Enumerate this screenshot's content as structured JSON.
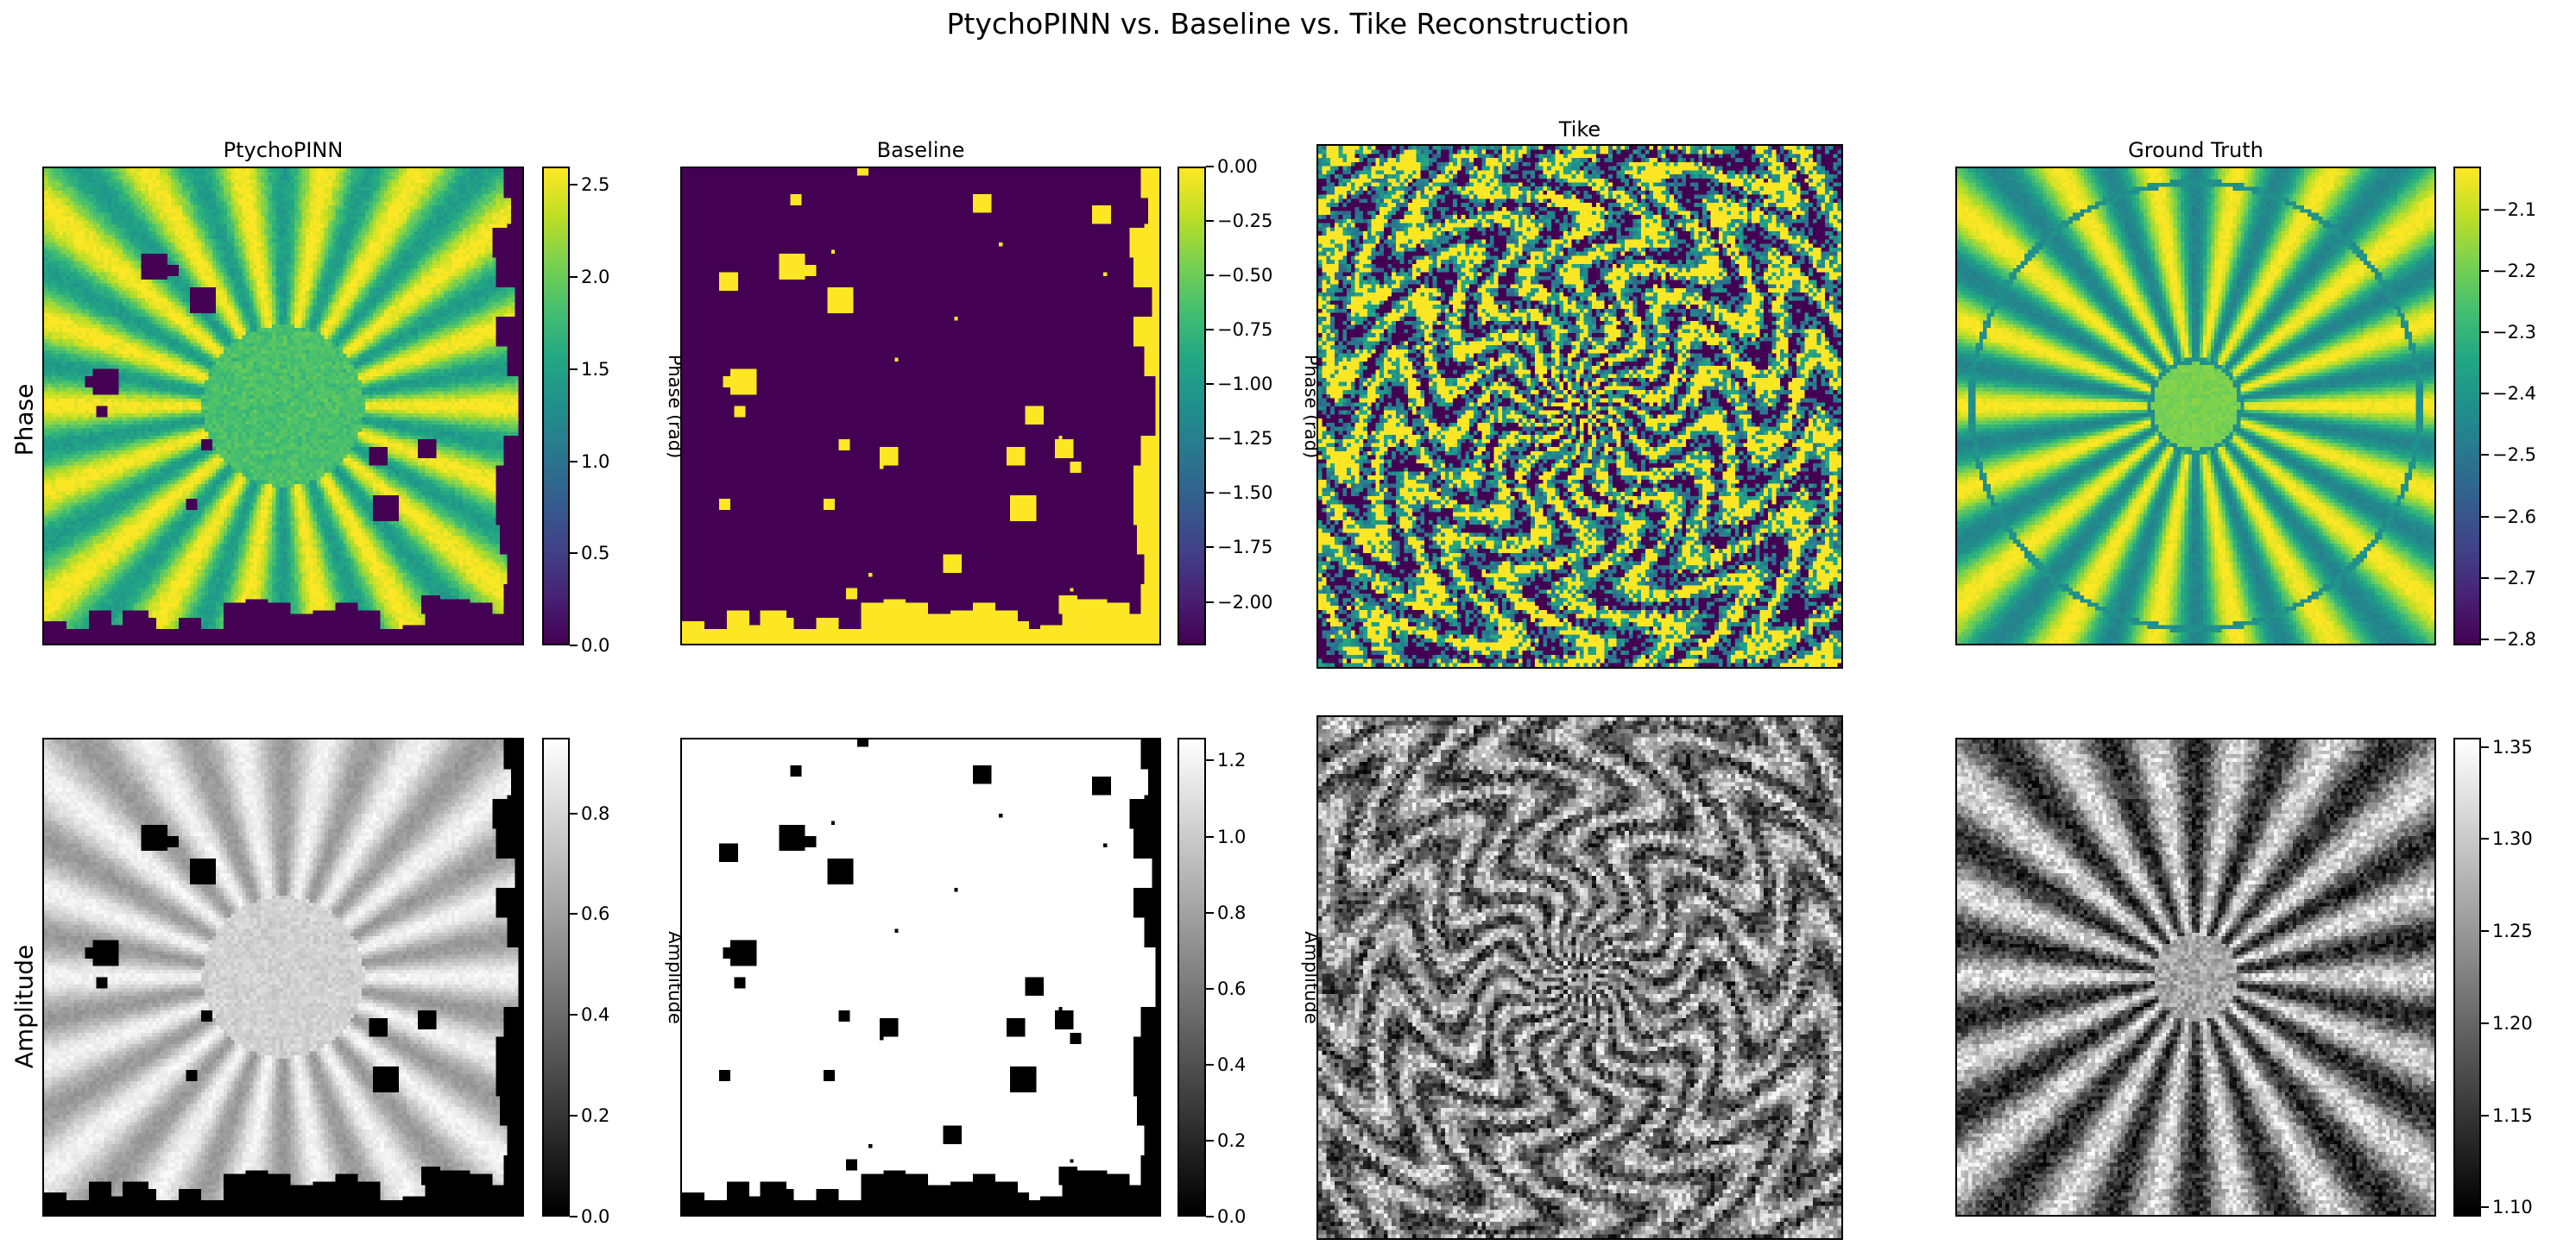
{
  "figure_title": "PtychoPINN vs. Baseline vs. Tike Reconstruction",
  "row_labels": [
    "Phase",
    "Amplitude"
  ],
  "chart_data": [
    {
      "type": "heatmap",
      "row": "Phase",
      "title": "PtychoPINN",
      "colormap": "viridis",
      "colorbar": {
        "label": "Phase (rad)",
        "range": [
          0.0,
          2.6
        ],
        "ticks": [
          0.0,
          0.5,
          1.0,
          1.5,
          2.0,
          2.5
        ],
        "tick_labels": [
          "0.0",
          "0.5",
          "1.0",
          "1.5",
          "2.0",
          "2.5"
        ]
      },
      "pattern": "siemens-star with masked border"
    },
    {
      "type": "heatmap",
      "row": "Phase",
      "title": "Baseline",
      "colormap": "viridis",
      "colorbar": {
        "label": "Phase (rad)",
        "range": [
          -2.2,
          0.0
        ],
        "ticks": [
          0.0,
          -0.25,
          -0.5,
          -0.75,
          -1.0,
          -1.25,
          -1.5,
          -1.75,
          -2.0
        ],
        "tick_labels": [
          "0.00",
          "−0.25",
          "−0.50",
          "−0.75",
          "−1.00",
          "−1.25",
          "−1.50",
          "−1.75",
          "−2.00"
        ]
      },
      "pattern": "mostly uniform with yellow border"
    },
    {
      "type": "heatmap",
      "row": "Phase",
      "title": "Tike",
      "colormap": "viridis",
      "colorbar": null,
      "pattern": "noisy siemens-star"
    },
    {
      "type": "heatmap",
      "row": "Phase",
      "title": "Ground Truth",
      "colormap": "viridis",
      "colorbar": {
        "label": "Phase (rad)",
        "range": [
          -2.81,
          -2.03
        ],
        "ticks": [
          -2.1,
          -2.2,
          -2.3,
          -2.4,
          -2.5,
          -2.6,
          -2.7,
          -2.8
        ],
        "tick_labels": [
          "−2.1",
          "−2.2",
          "−2.3",
          "−2.4",
          "−2.5",
          "−2.6",
          "−2.7",
          "−2.8"
        ]
      },
      "pattern": "clean siemens-star"
    },
    {
      "type": "heatmap",
      "row": "Amplitude",
      "title": "",
      "colormap": "gray",
      "colorbar": {
        "label": "Amplitude",
        "range": [
          0.0,
          0.95
        ],
        "ticks": [
          0.0,
          0.2,
          0.4,
          0.6,
          0.8
        ],
        "tick_labels": [
          "0.0",
          "0.2",
          "0.4",
          "0.6",
          "0.8"
        ]
      },
      "pattern": "smooth star with masked border"
    },
    {
      "type": "heatmap",
      "row": "Amplitude",
      "title": "",
      "colormap": "gray",
      "colorbar": {
        "label": "Amplitude",
        "range": [
          0.0,
          1.26
        ],
        "ticks": [
          0.0,
          0.2,
          0.4,
          0.6,
          0.8,
          1.0,
          1.2
        ],
        "tick_labels": [
          "0.0",
          "0.2",
          "0.4",
          "0.6",
          "0.8",
          "1.0",
          "1.2"
        ]
      },
      "pattern": "mostly white with black border"
    },
    {
      "type": "heatmap",
      "row": "Amplitude",
      "title": "",
      "colormap": "gray",
      "colorbar": null,
      "pattern": "noisy star"
    },
    {
      "type": "heatmap",
      "row": "Amplitude",
      "title": "",
      "colormap": "gray",
      "colorbar": {
        "label": "Amplitude",
        "range": [
          1.095,
          1.355
        ],
        "ticks": [
          1.1,
          1.15,
          1.2,
          1.25,
          1.3,
          1.35
        ],
        "tick_labels": [
          "1.10",
          "1.15",
          "1.20",
          "1.25",
          "1.30",
          "1.35"
        ]
      },
      "pattern": "siemens-star with bright center"
    }
  ]
}
